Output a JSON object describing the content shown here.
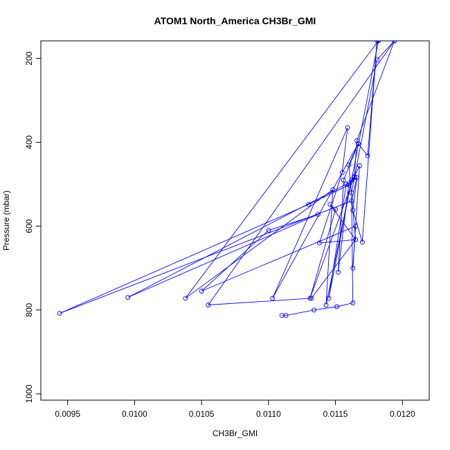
{
  "chart_data": {
    "type": "line",
    "title": "ATOM1 North_America CH3Br_GMI",
    "xlabel": "CH3Br_GMI",
    "ylabel": "Pressure (mbar)",
    "xlim": [
      0.0093,
      0.0122
    ],
    "ylim": [
      1015,
      158
    ],
    "y_reversed": true,
    "xticks": [
      0.0095,
      0.01,
      0.0105,
      0.011,
      0.0115,
      0.012
    ],
    "xtick_labels": [
      "0.0095",
      "0.0100",
      "0.0105",
      "0.0110",
      "0.0115",
      "0.0120"
    ],
    "yticks": [
      200,
      400,
      600,
      800,
      1000
    ],
    "ytick_labels": [
      "200",
      "400",
      "600",
      "800",
      "1000"
    ],
    "grid": false,
    "series_color": "#0000ff",
    "series": [
      {
        "points": [
          [
            0.01194,
            158
          ],
          [
            0.01166,
            396
          ],
          [
            0.01164,
            484
          ],
          [
            0.0116,
            502
          ],
          [
            0.0113,
            548
          ],
          [
            0.00944,
            808
          ],
          [
            0.01162,
            540
          ],
          [
            0.01166,
            484
          ],
          [
            0.01163,
            562
          ],
          [
            0.0117,
            638
          ],
          [
            0.01181,
            158
          ],
          [
            0.01174,
            432
          ],
          [
            0.01167,
            403
          ],
          [
            0.0116,
            454
          ],
          [
            0.01165,
            632
          ],
          [
            0.01138,
            640
          ],
          [
            0.01155,
            472
          ],
          [
            0.01159,
            365
          ],
          [
            0.01103,
            772
          ],
          [
            0.01167,
            403
          ],
          [
            0.01156,
            490
          ],
          [
            0.01152,
            710
          ],
          [
            0.0116,
            498
          ],
          [
            0.01164,
            482
          ],
          [
            0.01162,
            490
          ],
          [
            0.01143,
            788
          ],
          [
            0.01148,
            513
          ],
          [
            0.01038,
            772
          ],
          [
            0.01182,
            158
          ],
          [
            0.01145,
            772
          ],
          [
            0.01158,
            500
          ],
          [
            0.00995,
            770
          ],
          [
            0.01137,
            572
          ],
          [
            0.011,
            610
          ],
          [
            0.0105,
            755
          ],
          [
            0.01165,
            600
          ],
          [
            0.01163,
            700
          ],
          [
            0.01168,
            456
          ],
          [
            0.01164,
            482
          ],
          [
            0.01131,
            772
          ],
          [
            0.0115,
            560
          ],
          [
            0.01146,
            548
          ],
          [
            0.01165,
            632
          ],
          [
            0.01132,
            772
          ],
          [
            0.01055,
            788
          ],
          [
            0.01194,
            158
          ],
          [
            0.01181,
            203
          ],
          [
            0.01162,
            520
          ],
          [
            0.01163,
            783
          ],
          [
            0.01151,
            792
          ],
          [
            0.01134,
            800
          ],
          [
            0.01113,
            813
          ],
          [
            0.0111,
            813
          ]
        ]
      }
    ]
  }
}
